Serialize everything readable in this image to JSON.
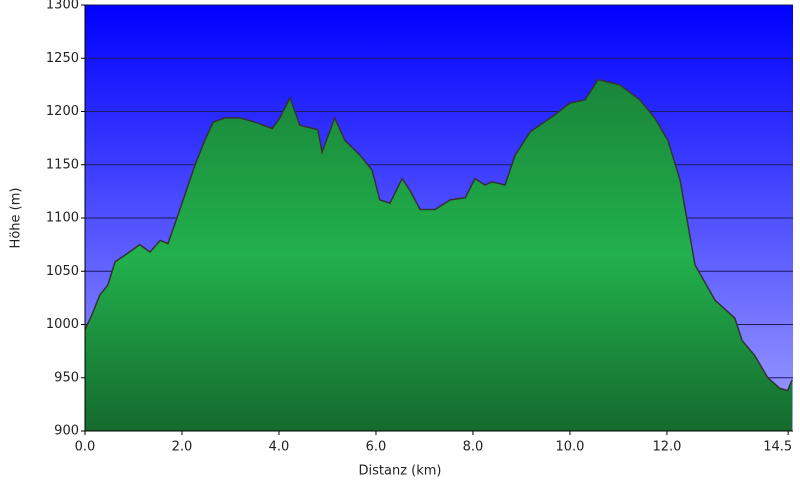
{
  "chart_data": {
    "type": "area",
    "x_label": "Distanz (km)",
    "y_label": "Höhe (m)",
    "x": [
      0,
      0.14,
      0.31,
      0.47,
      0.62,
      0.82,
      1.13,
      1.34,
      1.55,
      1.71,
      1.92,
      2.06,
      2.27,
      2.47,
      2.64,
      2.89,
      3.2,
      3.51,
      3.86,
      4.02,
      4.23,
      4.43,
      4.8,
      4.89,
      5.15,
      5.36,
      5.67,
      5.92,
      6.08,
      6.29,
      6.54,
      6.7,
      6.91,
      7.22,
      7.53,
      7.84,
      8.04,
      8.25,
      8.39,
      8.66,
      8.87,
      9.18,
      9.69,
      10.0,
      10.31,
      10.58,
      11.03,
      11.44,
      11.75,
      12.02,
      12.27,
      12.58,
      12.99,
      13.4,
      13.55,
      13.81,
      14.08,
      14.33,
      14.49,
      14.58
    ],
    "values": [
      995,
      1009,
      1028,
      1037,
      1059,
      1065,
      1075,
      1068,
      1079,
      1076,
      1103,
      1122,
      1150,
      1173,
      1190,
      1194,
      1194,
      1190,
      1184,
      1194,
      1213,
      1187,
      1183,
      1162,
      1194,
      1173,
      1159,
      1145,
      1117,
      1114,
      1137,
      1126,
      1108,
      1108,
      1117,
      1119,
      1137,
      1131,
      1134,
      1131,
      1159,
      1181,
      1197,
      1208,
      1211,
      1230,
      1225,
      1211,
      1194,
      1173,
      1136,
      1056,
      1023,
      1006,
      985,
      971,
      950,
      940,
      938,
      948
    ],
    "color": "#22b14c",
    "xlim": [
      0,
      14.6
    ],
    "ylim": [
      900,
      1300
    ],
    "xticks": [
      {
        "value": 0,
        "label": "0.0"
      },
      {
        "value": 2,
        "label": "2.0"
      },
      {
        "value": 4,
        "label": "4.0"
      },
      {
        "value": 6,
        "label": "6.0"
      },
      {
        "value": 8,
        "label": "8.0"
      },
      {
        "value": 10,
        "label": "10.0"
      },
      {
        "value": 12,
        "label": "12.0"
      },
      14.5
    ],
    "yticks": [
      900,
      950,
      1000,
      1050,
      1100,
      1150,
      1200,
      1250,
      1300
    ],
    "grid": true
  }
}
